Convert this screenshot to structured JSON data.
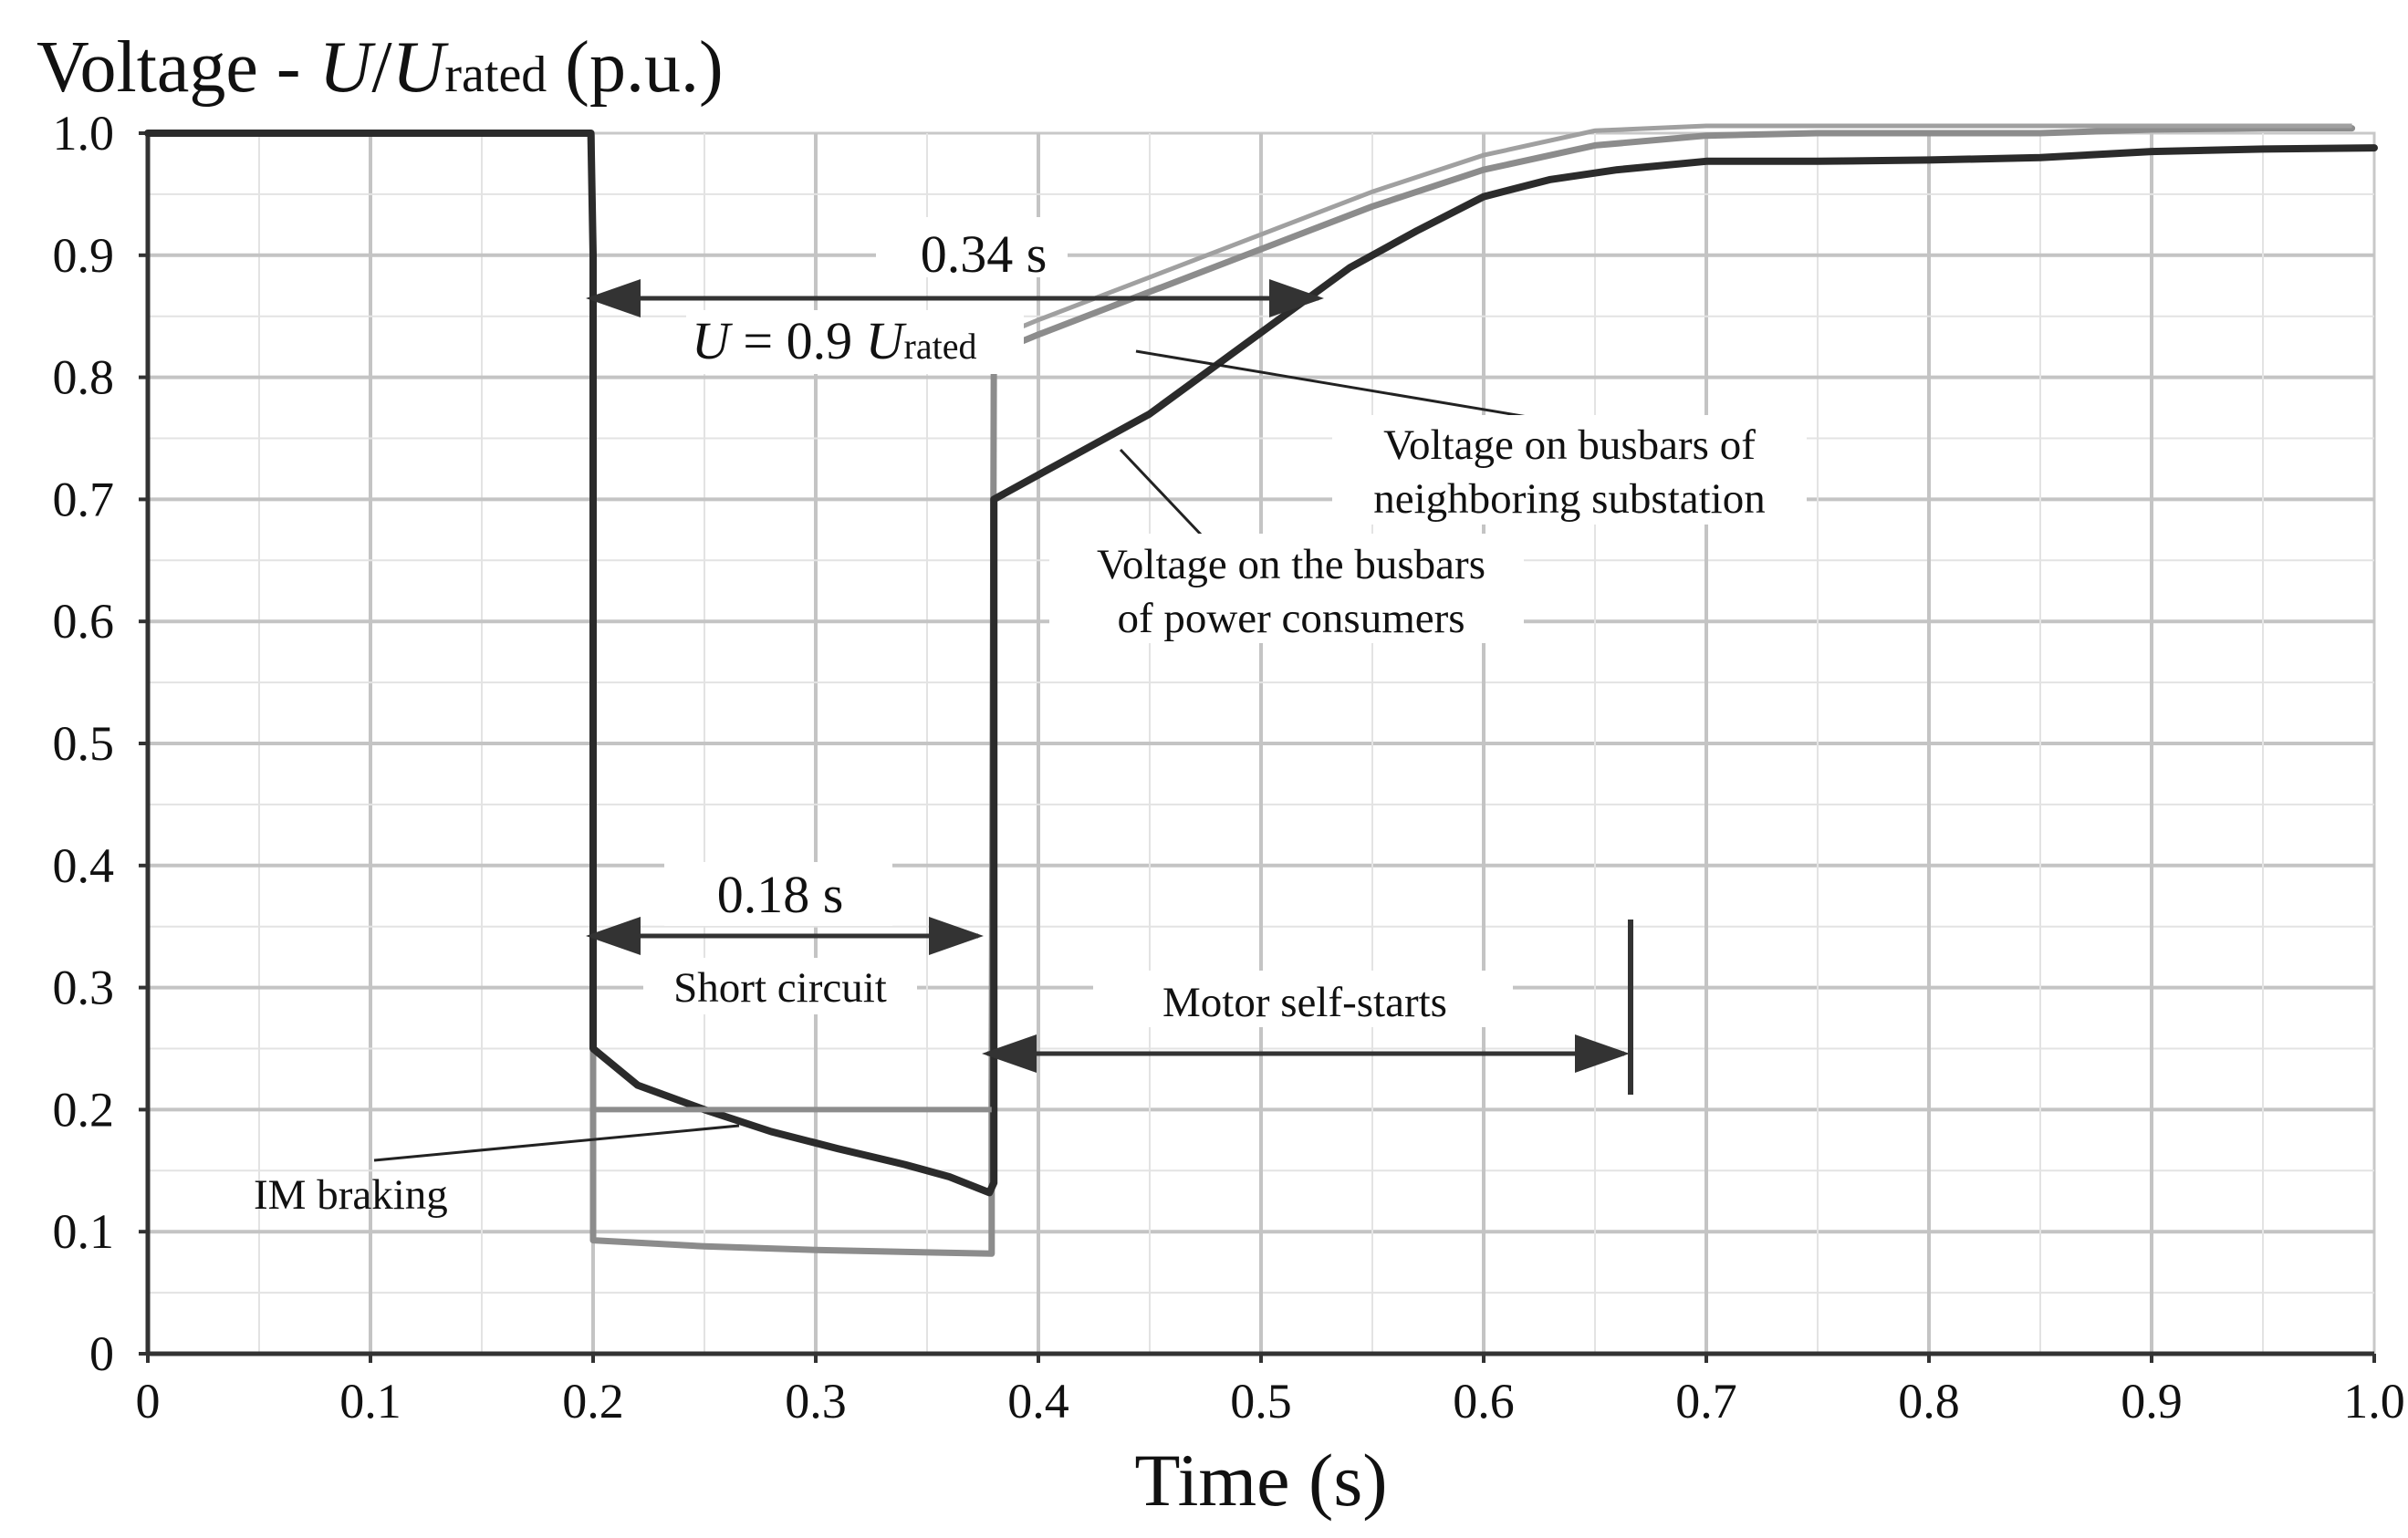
{
  "chart_data": {
    "type": "line",
    "title_parts": {
      "prefix": "Voltage - ",
      "u1": "U",
      "slash": "/",
      "u2": "U",
      "sub": "rated",
      "suffix": " (p.u.)"
    },
    "xlabel": "Time (s)",
    "xlim": [
      0,
      1.0
    ],
    "ylim": [
      0,
      1.0
    ],
    "x_ticks": [
      0,
      0.1,
      0.2,
      0.3,
      0.4,
      0.5,
      0.6,
      0.7,
      0.8,
      0.9,
      1.0
    ],
    "x_tick_labels": [
      "0",
      "0.1",
      "0.2",
      "0.3",
      "0.4",
      "0.5",
      "0.6",
      "0.7",
      "0.8",
      "0.9",
      "1.0"
    ],
    "y_ticks": [
      0,
      0.1,
      0.2,
      0.3,
      0.4,
      0.5,
      0.6,
      0.7,
      0.8,
      0.9,
      1.0
    ],
    "y_tick_labels": [
      "0",
      "0.1",
      "0.2",
      "0.3",
      "0.4",
      "0.5",
      "0.6",
      "0.7",
      "0.8",
      "0.9",
      "1.0"
    ],
    "grid": true,
    "series": [
      {
        "name": "Voltage on the busbars of power consumers",
        "color": "#2b2b2b",
        "x": [
          0,
          0.199,
          0.2,
          0.2,
          0.22,
          0.25,
          0.28,
          0.31,
          0.34,
          0.36,
          0.378,
          0.38,
          0.38,
          0.4,
          0.42,
          0.45,
          0.48,
          0.51,
          0.54,
          0.57,
          0.6,
          0.63,
          0.66,
          0.7,
          0.75,
          0.8,
          0.85,
          0.9,
          0.95,
          1.0
        ],
        "y": [
          1.0,
          1.0,
          0.9,
          0.25,
          0.22,
          0.2,
          0.182,
          0.168,
          0.155,
          0.145,
          0.132,
          0.14,
          0.7,
          0.72,
          0.74,
          0.77,
          0.81,
          0.85,
          0.89,
          0.92,
          0.948,
          0.962,
          0.97,
          0.977,
          0.977,
          0.978,
          0.98,
          0.985,
          0.987,
          0.988
        ]
      },
      {
        "name": "Voltage on busbars of neighboring substation",
        "color": "#8c8c8c",
        "x": [
          0.2,
          0.2,
          0.25,
          0.3,
          0.35,
          0.379,
          0.379,
          0.38,
          0.4,
          0.45,
          0.5,
          0.55,
          0.6,
          0.65,
          0.7,
          0.75,
          0.8,
          0.85,
          0.9,
          0.95,
          0.99
        ],
        "y": [
          0.4,
          0.093,
          0.088,
          0.085,
          0.083,
          0.082,
          0.2,
          0.82,
          0.835,
          0.87,
          0.905,
          0.94,
          0.97,
          0.99,
          0.998,
          1.0,
          1.0,
          1.0,
          1.003,
          1.004,
          1.004
        ]
      }
    ],
    "annotations": {
      "dur_034": "0.34 s",
      "u_eq_parts": {
        "u": "U",
        "eq": " = 0.9 ",
        "u2": "U",
        "sub": "rated"
      },
      "neighbor_line1": "Voltage on busbars of",
      "neighbor_line2": "neighboring substation",
      "consumer_line1": "Voltage on the busbars",
      "consumer_line2": "of power consumers",
      "dur_018": "0.18 s",
      "short_circuit": "Short circuit",
      "motor_self_starts": "Motor self-starts",
      "im_braking": "IM braking"
    }
  }
}
